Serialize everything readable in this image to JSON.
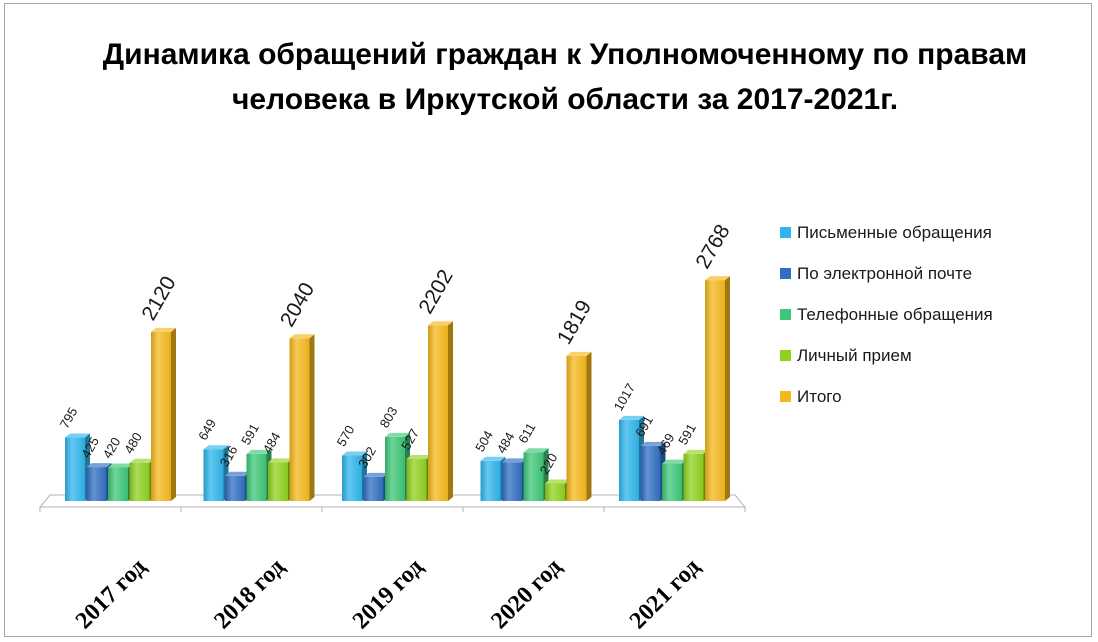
{
  "chart_data": {
    "type": "bar",
    "title": "Динамика обращений граждан к Уполномоченному по правам человека в Иркутской области за 2017-2021г.",
    "categories": [
      "2017 год",
      "2018 год",
      "2019 год",
      "2020 год",
      "2021 год"
    ],
    "series": [
      {
        "name": "Письменные обращения",
        "color": "#2fb5ec",
        "values": [
          795,
          649,
          570,
          504,
          1017
        ]
      },
      {
        "name": "По электронной почте",
        "color": "#2f6fc2",
        "values": [
          425,
          316,
          302,
          484,
          691
        ]
      },
      {
        "name": "Телефонные обращения",
        "color": "#3dc777",
        "values": [
          420,
          591,
          803,
          611,
          469
        ]
      },
      {
        "name": "Личный прием",
        "color": "#8fd21e",
        "values": [
          480,
          484,
          527,
          220,
          591
        ]
      },
      {
        "name": "Итого",
        "color": "#f5b81c",
        "values": [
          2120,
          2040,
          2202,
          1819,
          2768
        ]
      }
    ],
    "xlabel": "",
    "ylabel": "",
    "ylim": [
      0,
      2800
    ],
    "grid": false,
    "legend": "right"
  }
}
